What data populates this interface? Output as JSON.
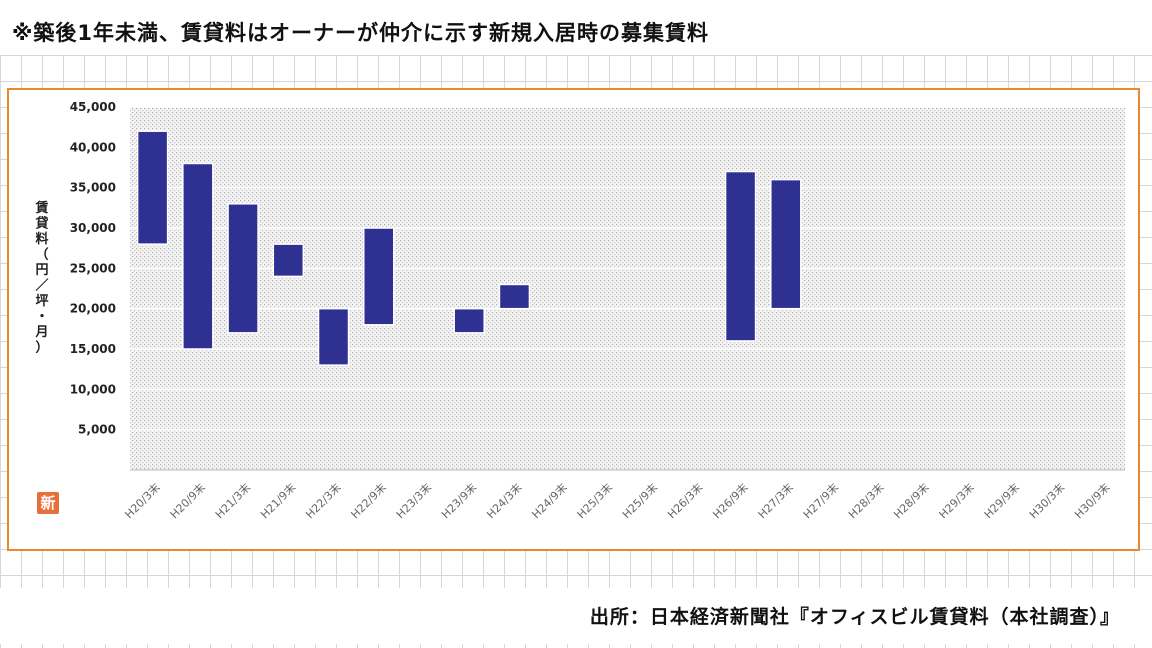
{
  "note": "※築後1年未満、賃貸料はオーナーが仲介に示す新規入居時の募集賃料",
  "source": "出所：日本経済新聞社『オフィスビル賃貸料（本社調査）』",
  "badge": "新",
  "colors": {
    "bar": "#2e3192",
    "frame": "#e8892e",
    "badge": "#e7703a"
  },
  "chart_data": {
    "type": "bar",
    "subtype": "floating-range",
    "ylabel": "賃貸料（円／坪・月）",
    "ylim": [
      0,
      45000
    ],
    "yticks": [
      "5,000",
      "10,000",
      "15,000",
      "20,000",
      "25,000",
      "30,000",
      "35,000",
      "40,000",
      "45,000"
    ],
    "grid": true,
    "categories": [
      "H20/3末",
      "H20/9末",
      "H21/3末",
      "H21/9末",
      "H22/3末",
      "H22/9末",
      "H23/3末",
      "H23/9末",
      "H24/3末",
      "H24/9末",
      "H25/3末",
      "H25/9末",
      "H26/3末",
      "H26/9末",
      "H27/3末",
      "H27/9末",
      "H28/3末",
      "H28/9末",
      "H29/3末",
      "H29/9末",
      "H30/3末",
      "H30/9末"
    ],
    "series": [
      {
        "low": [
          28000,
          15000,
          17000,
          24000,
          13000,
          18000,
          null,
          17000,
          20000,
          null,
          null,
          null,
          null,
          16000,
          20000,
          null,
          null,
          null,
          null,
          null,
          null,
          null
        ],
        "high": [
          42000,
          38000,
          33000,
          28000,
          20000,
          30000,
          null,
          20000,
          23000,
          null,
          null,
          null,
          null,
          37000,
          36000,
          null,
          null,
          null,
          null,
          null,
          null,
          null
        ]
      }
    ]
  }
}
